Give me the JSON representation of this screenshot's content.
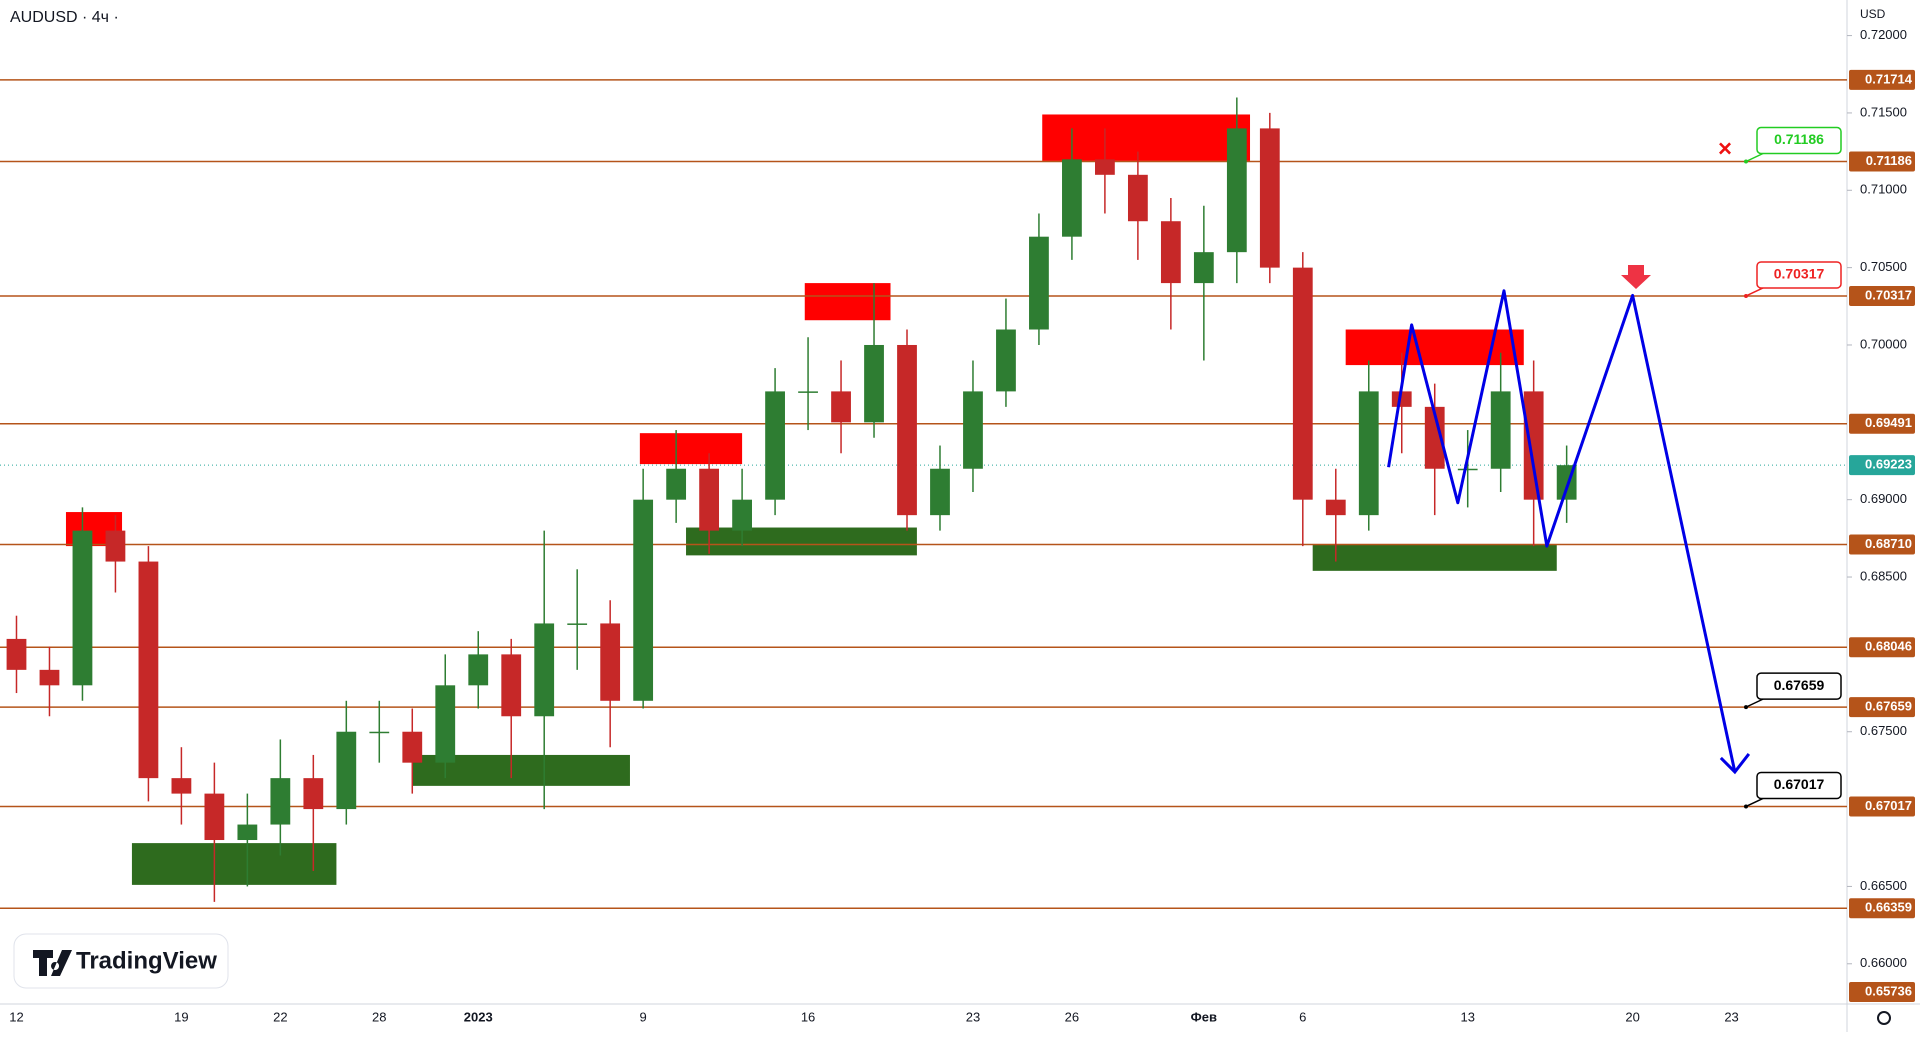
{
  "header": "AUDUSD · 4ч ·",
  "currency": "USD",
  "logo": "TradingView",
  "chart_data": {
    "type": "candlestick",
    "categories": [
      "12",
      null,
      null,
      null,
      null,
      "19",
      null,
      null,
      "22",
      null,
      null,
      "28",
      null,
      null,
      "2023",
      null,
      null,
      null,
      null,
      "9",
      null,
      null,
      null,
      null,
      "16",
      null,
      null,
      null,
      null,
      "23",
      null,
      null,
      "26",
      null,
      null,
      null,
      "Фев",
      null,
      null,
      "6",
      null,
      null,
      null,
      null,
      "13",
      null,
      null,
      null,
      null,
      "20",
      null,
      null,
      "23",
      null,
      null,
      null
    ],
    "series": [
      {
        "open": [
          0.681,
          0.679,
          0.678,
          0.688,
          0.686,
          0.672,
          0.671,
          0.668,
          0.669,
          0.672,
          0.67,
          0.675,
          0.675,
          0.673,
          0.678,
          0.68,
          0.676,
          0.682,
          0.682,
          0.677,
          0.69,
          0.692,
          0.688,
          0.69,
          0.697,
          0.697,
          0.695,
          0.7,
          0.689,
          0.692,
          0.697,
          0.701,
          0.707,
          0.712,
          0.711,
          0.708,
          0.704,
          0.706,
          0.714,
          0.705,
          0.69,
          0.689,
          0.697,
          0.696,
          0.692,
          0.692,
          0.697,
          0.69
        ],
        "high": [
          0.6825,
          0.6805,
          0.6895,
          0.689,
          0.687,
          0.674,
          0.673,
          0.671,
          0.6745,
          0.6735,
          0.677,
          0.677,
          0.6765,
          0.68,
          0.6815,
          0.681,
          0.688,
          0.6855,
          0.6835,
          0.692,
          0.6945,
          0.693,
          0.692,
          0.6985,
          0.7005,
          0.699,
          0.704,
          0.701,
          0.6935,
          0.699,
          0.703,
          0.7085,
          0.714,
          0.714,
          0.7125,
          0.7095,
          0.709,
          0.716,
          0.715,
          0.706,
          0.692,
          0.699,
          0.6995,
          0.6975,
          0.6945,
          0.6995,
          0.699,
          0.6935
        ],
        "low": [
          0.6775,
          0.676,
          0.677,
          0.684,
          0.6705,
          0.669,
          0.664,
          0.665,
          0.667,
          0.666,
          0.669,
          0.673,
          0.671,
          0.672,
          0.6765,
          0.672,
          0.67,
          0.679,
          0.674,
          0.6765,
          0.6885,
          0.6865,
          0.687,
          0.689,
          0.6945,
          0.693,
          0.694,
          0.688,
          0.688,
          0.6905,
          0.696,
          0.7,
          0.7055,
          0.7085,
          0.7055,
          0.701,
          0.699,
          0.704,
          0.704,
          0.687,
          0.686,
          0.688,
          0.693,
          0.689,
          0.6895,
          0.6905,
          0.687,
          0.6885
        ],
        "close": [
          0.679,
          0.678,
          0.688,
          0.686,
          0.672,
          0.671,
          0.668,
          0.669,
          0.672,
          0.67,
          0.675,
          0.675,
          0.673,
          0.678,
          0.68,
          0.676,
          0.682,
          0.682,
          0.677,
          0.69,
          0.692,
          0.688,
          0.69,
          0.697,
          0.697,
          0.695,
          0.7,
          0.689,
          0.692,
          0.697,
          0.701,
          0.707,
          0.712,
          0.711,
          0.708,
          0.704,
          0.706,
          0.714,
          0.705,
          0.69,
          0.689,
          0.697,
          0.696,
          0.692,
          0.692,
          0.697,
          0.69,
          0.69223
        ],
        "up_color": "#2e7d32",
        "down_color": "#c62828"
      }
    ],
    "ylim": [
      0.6574,
      0.7223
    ],
    "yticks": [
      {
        "value": 0.72,
        "label": "0.72000"
      },
      {
        "value": 0.715,
        "label": "0.71500"
      },
      {
        "value": 0.71,
        "label": "0.71000"
      },
      {
        "value": 0.705,
        "label": "0.70500"
      },
      {
        "value": 0.7,
        "label": "0.70000"
      },
      {
        "value": 0.69,
        "label": "0.69000"
      },
      {
        "value": 0.685,
        "label": "0.68500"
      },
      {
        "value": 0.675,
        "label": "0.67500"
      },
      {
        "value": 0.665,
        "label": "0.66500"
      },
      {
        "value": 0.66,
        "label": "0.66000"
      }
    ],
    "levels": [
      {
        "value": 0.71714,
        "label": "0.71714"
      },
      {
        "value": 0.71186,
        "label": "0.71186"
      },
      {
        "value": 0.70317,
        "label": "0.70317"
      },
      {
        "value": 0.69491,
        "label": "0.69491"
      },
      {
        "value": 0.6871,
        "label": "0.68710"
      },
      {
        "value": 0.68046,
        "label": "0.68046"
      },
      {
        "value": 0.67659,
        "label": "0.67659"
      },
      {
        "value": 0.67017,
        "label": "0.67017"
      },
      {
        "value": 0.66359,
        "label": "0.66359"
      },
      {
        "value": 0.65736,
        "label": "0.65736"
      }
    ],
    "level_color": "#b5541a",
    "current_price": {
      "value": 0.69223,
      "label": "0.69223",
      "color": "#26a69a"
    },
    "zones": [
      {
        "x": [
          1.5,
          3.2
        ],
        "y": [
          0.687,
          0.6892
        ],
        "color": "#ff0000"
      },
      {
        "x": [
          18.9,
          22
        ],
        "y": [
          0.6923,
          0.6943
        ],
        "color": "#ff0000"
      },
      {
        "x": [
          23.9,
          26.5
        ],
        "y": [
          0.7016,
          0.704
        ],
        "color": "#ff0000"
      },
      {
        "x": [
          31.1,
          37.4
        ],
        "y": [
          0.7119,
          0.7149
        ],
        "color": "#ff0000"
      },
      {
        "x": [
          40.3,
          45.7
        ],
        "y": [
          0.6987,
          0.701
        ],
        "color": "#ff0000"
      },
      {
        "x": [
          3.5,
          9.7
        ],
        "y": [
          0.6651,
          0.6678
        ],
        "color": "#2e6b1e"
      },
      {
        "x": [
          12,
          18.6
        ],
        "y": [
          0.6715,
          0.6735
        ],
        "color": "#2e6b1e"
      },
      {
        "x": [
          20.3,
          27.3
        ],
        "y": [
          0.6864,
          0.6882
        ],
        "color": "#2e6b1e"
      },
      {
        "x": [
          39.3,
          46.7
        ],
        "y": [
          0.6854,
          0.6871
        ],
        "color": "#2e6b1e"
      }
    ],
    "projection": {
      "x": [
        41.6,
        42.3,
        43.7,
        45.1,
        46.4,
        49.0,
        52.1
      ],
      "y": [
        0.6921,
        0.7013,
        0.6898,
        0.7035,
        0.687,
        0.7032,
        0.6724
      ],
      "color": "#0000e6"
    },
    "callouts": [
      {
        "value": 0.71186,
        "label": "0.71186",
        "color": "#22cc22"
      },
      {
        "value": 0.70317,
        "label": "0.70317",
        "color": "#ee2222"
      },
      {
        "value": 0.67659,
        "label": "0.67659",
        "color": "#000000"
      },
      {
        "value": 0.67017,
        "label": "0.67017",
        "color": "#000000"
      }
    ]
  }
}
